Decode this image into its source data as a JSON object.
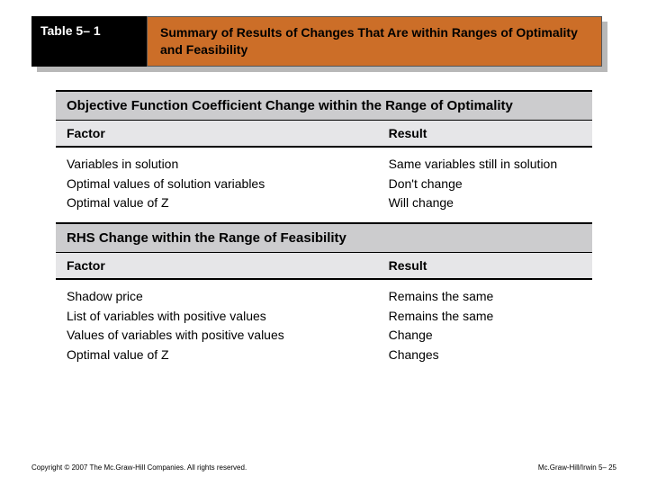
{
  "header": {
    "label": "Table 5– 1",
    "title": "Summary of Results of Changes That Are within Ranges of Optimality and Feasibility"
  },
  "table": {
    "section1": {
      "title": "Objective Function Coefficient Change within the Range of Optimality",
      "col_head_left": "Factor",
      "col_head_right": "Result",
      "rows_left": [
        "Variables in solution",
        "Optimal values of solution variables",
        "Optimal value of Z"
      ],
      "rows_right": [
        "Same variables still in solution",
        "Don't change",
        "Will change"
      ]
    },
    "section2": {
      "title": "RHS Change within the Range of Feasibility",
      "col_head_left": "Factor",
      "col_head_right": "Result",
      "rows_left": [
        "Shadow price",
        "List of variables with positive values",
        "Values of variables with positive values",
        "Optimal value of Z"
      ],
      "rows_right": [
        "Remains the same",
        "Remains the same",
        "Change",
        "Changes"
      ]
    }
  },
  "footer": {
    "left": "Copyright © 2007 The Mc.Graw-Hill Companies. All rights reserved.",
    "right": "Mc.Graw-Hill/Irwin  5– 25"
  },
  "colors": {
    "label_bg": "#000000",
    "title_bg": "#cc6e28",
    "shadow_bg": "#b8b8b8",
    "section_bg": "#ccccce",
    "colhead_bg": "#e6e6e8"
  }
}
